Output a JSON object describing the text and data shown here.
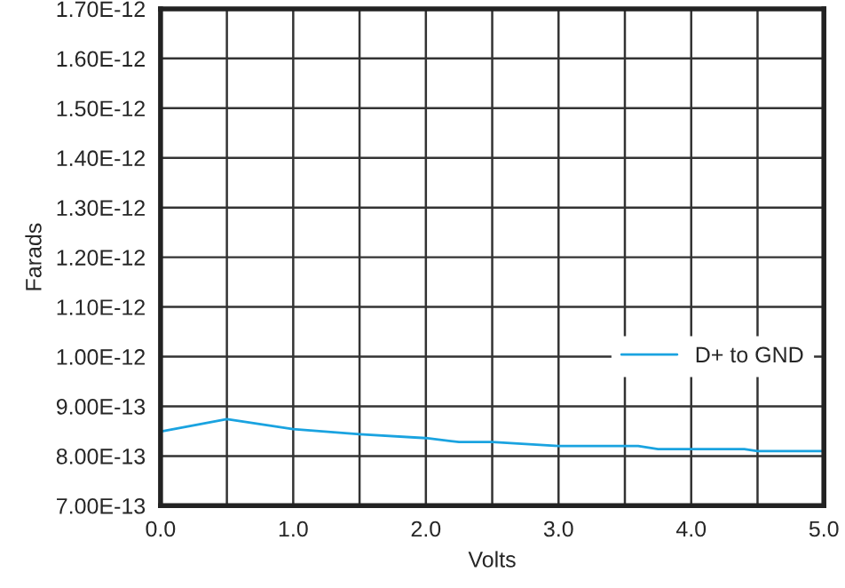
{
  "chart_data": {
    "type": "line",
    "xlabel": "Volts",
    "ylabel": "Farads",
    "series": [
      {
        "name": "D+ to GND",
        "color": "#1aa3e0",
        "x": [
          0,
          0.5,
          1.0,
          1.5,
          2.0,
          2.25,
          2.5,
          3.0,
          3.6,
          3.75,
          4.4,
          4.5,
          5.0
        ],
        "values": [
          8.49e-13,
          8.74e-13,
          8.54e-13,
          8.44e-13,
          8.36e-13,
          8.28e-13,
          8.28e-13,
          8.2e-13,
          8.2e-13,
          8.14e-13,
          8.14e-13,
          8.1e-13,
          8.1e-13
        ]
      }
    ],
    "xlim": [
      0,
      5
    ],
    "xticks": [
      {
        "value": 0,
        "label": "0.0"
      },
      {
        "value": 1,
        "label": "1.0"
      },
      {
        "value": 2,
        "label": "2.0"
      },
      {
        "value": 3,
        "label": "3.0"
      },
      {
        "value": 4,
        "label": "4.0"
      },
      {
        "value": 5,
        "label": "5.0"
      },
      {
        "value": 0.5,
        "label": null
      },
      {
        "value": 1.5,
        "label": null
      },
      {
        "value": 2.5,
        "label": null
      },
      {
        "value": 3.5,
        "label": null
      },
      {
        "value": 4.5,
        "label": null
      }
    ],
    "ylim": [
      7e-13,
      1.7e-12
    ],
    "yticks": [
      {
        "value": 7e-13,
        "label": "7.00E-13"
      },
      {
        "value": 8e-13,
        "label": "8.00E-13"
      },
      {
        "value": 9e-13,
        "label": "9.00E-13"
      },
      {
        "value": 1e-12,
        "label": "1.00E-12"
      },
      {
        "value": 1.1e-12,
        "label": "1.10E-12"
      },
      {
        "value": 1.2e-12,
        "label": "1.20E-12"
      },
      {
        "value": 1.3e-12,
        "label": "1.30E-12"
      },
      {
        "value": 1.4e-12,
        "label": "1.40E-12"
      },
      {
        "value": 1.5e-12,
        "label": "1.50E-12"
      },
      {
        "value": 1.6e-12,
        "label": "1.60E-12"
      },
      {
        "value": 1.7e-12,
        "label": "1.70E-12"
      }
    ],
    "grid": true,
    "legend": "right",
    "marker": "none",
    "line_style": "solid"
  }
}
